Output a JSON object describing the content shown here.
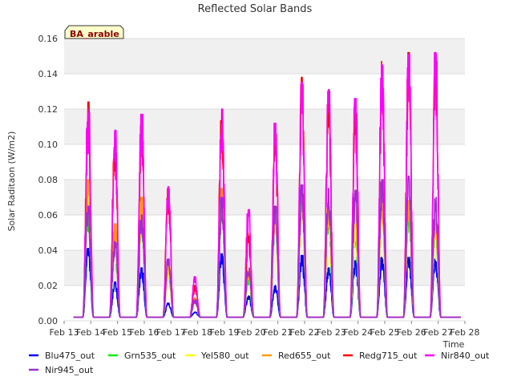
{
  "chart_data": {
    "type": "line",
    "title": "Reflected Solar Bands",
    "site_label": "BA_arable",
    "xlabel": "Time",
    "ylabel": "Solar Raditaon (W/m2)",
    "ylim": [
      0,
      0.16
    ],
    "yticks": [
      0.0,
      0.02,
      0.04,
      0.06,
      0.08,
      0.1,
      0.12,
      0.14,
      0.16
    ],
    "ytick_labels": [
      "0.00",
      "0.02",
      "0.04",
      "0.06",
      "0.08",
      "0.10",
      "0.12",
      "0.14",
      "0.16"
    ],
    "xlim": [
      13,
      28
    ],
    "xticks": [
      13,
      14,
      15,
      16,
      17,
      18,
      19,
      20,
      21,
      22,
      23,
      24,
      25,
      26,
      27,
      28
    ],
    "xtick_labels": [
      "Feb 13",
      "Feb 14",
      "Feb 15",
      "Feb 16",
      "Feb 17",
      "Feb 18",
      "Feb 19",
      "Feb 20",
      "Feb 21",
      "Feb 22",
      "Feb 23",
      "Feb 24",
      "Feb 25",
      "Feb 26",
      "Feb 27",
      "Feb 28"
    ],
    "grid": true,
    "legend_position": "bottom",
    "baseline": 0.002,
    "x_start": 13.35,
    "x_end": 27.85,
    "days": [
      13.9,
      14.9,
      15.9,
      16.9,
      17.9,
      18.9,
      19.9,
      20.9,
      21.9,
      22.9,
      23.9,
      24.9,
      25.9,
      26.9
    ],
    "series": [
      {
        "name": "Blu475_out",
        "color": "#0000ff",
        "peaks": [
          0.041,
          0.022,
          0.03,
          0.01,
          0.005,
          0.038,
          0.014,
          0.02,
          0.037,
          0.03,
          0.034,
          0.036,
          0.036,
          0.035
        ]
      },
      {
        "name": "Grn535_out",
        "color": "#00ee00",
        "peaks": [
          0.06,
          0.045,
          0.06,
          0.03,
          0.012,
          0.07,
          0.025,
          0.06,
          0.075,
          0.06,
          0.05,
          0.07,
          0.065,
          0.055
        ]
      },
      {
        "name": "Yel580_out",
        "color": "#ffff00",
        "peaks": [
          0.075,
          0.05,
          0.065,
          0.03,
          0.012,
          0.072,
          0.027,
          0.06,
          0.07,
          0.065,
          0.055,
          0.068,
          0.066,
          0.06
        ]
      },
      {
        "name": "Red655_out",
        "color": "#ff9900",
        "peaks": [
          0.08,
          0.055,
          0.07,
          0.033,
          0.013,
          0.075,
          0.028,
          0.065,
          0.075,
          0.068,
          0.072,
          0.07,
          0.068,
          0.062
        ]
      },
      {
        "name": "Redg715_out",
        "color": "#ff0000",
        "peaks": [
          0.124,
          0.105,
          0.115,
          0.075,
          0.02,
          0.12,
          0.05,
          0.11,
          0.138,
          0.13,
          0.125,
          0.147,
          0.152,
          0.15
        ]
      },
      {
        "name": "Nir840_out",
        "color": "#ff00ff",
        "peaks": [
          0.12,
          0.108,
          0.117,
          0.076,
          0.025,
          0.12,
          0.063,
          0.112,
          0.135,
          0.131,
          0.126,
          0.145,
          0.151,
          0.152
        ]
      },
      {
        "name": "Nir945_out",
        "color": "#9932cc",
        "peaks": [
          0.065,
          0.045,
          0.06,
          0.035,
          0.012,
          0.07,
          0.03,
          0.065,
          0.077,
          0.075,
          0.074,
          0.08,
          0.082,
          0.07
        ]
      }
    ]
  }
}
